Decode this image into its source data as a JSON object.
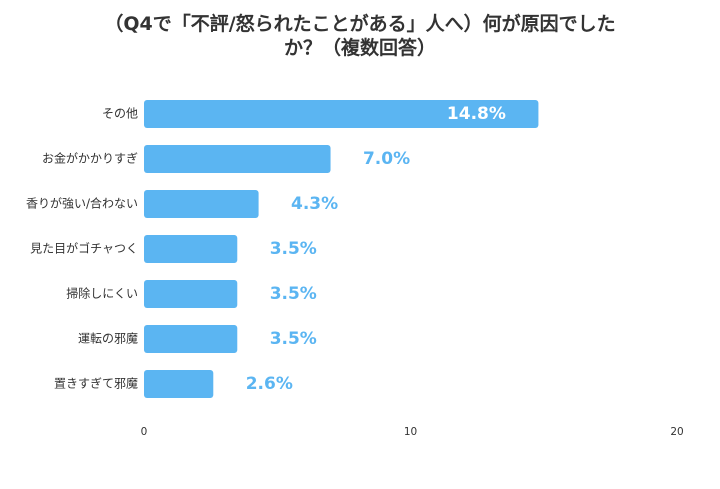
{
  "chart_data": {
    "type": "bar",
    "orientation": "horizontal",
    "title_lines": [
      "（Q4で「不評/怒られたことがある」人へ）何が原因でした",
      "か？（複数回答）"
    ],
    "categories": [
      "その他",
      "お金がかかりすぎ",
      "香りが強い/合わない",
      "見た目がゴチャつく",
      "掃除しにくい",
      "運転の邪魔",
      "置きすぎて邪魔"
    ],
    "values": [
      14.8,
      7.0,
      4.3,
      3.5,
      3.5,
      3.5,
      2.6
    ],
    "value_labels": [
      "14.8%",
      "7.0%",
      "4.3%",
      "3.5%",
      "3.5%",
      "3.5%",
      "2.6%"
    ],
    "xticks": [
      "0",
      "10",
      "20"
    ],
    "xlim": [
      0,
      20
    ],
    "grid": false,
    "legend": "none",
    "colors": {
      "bar": "#5BB5F2",
      "value_label_outside": "#5BB5F2",
      "value_label_inside": "#ffffff",
      "text": "#333333"
    }
  }
}
